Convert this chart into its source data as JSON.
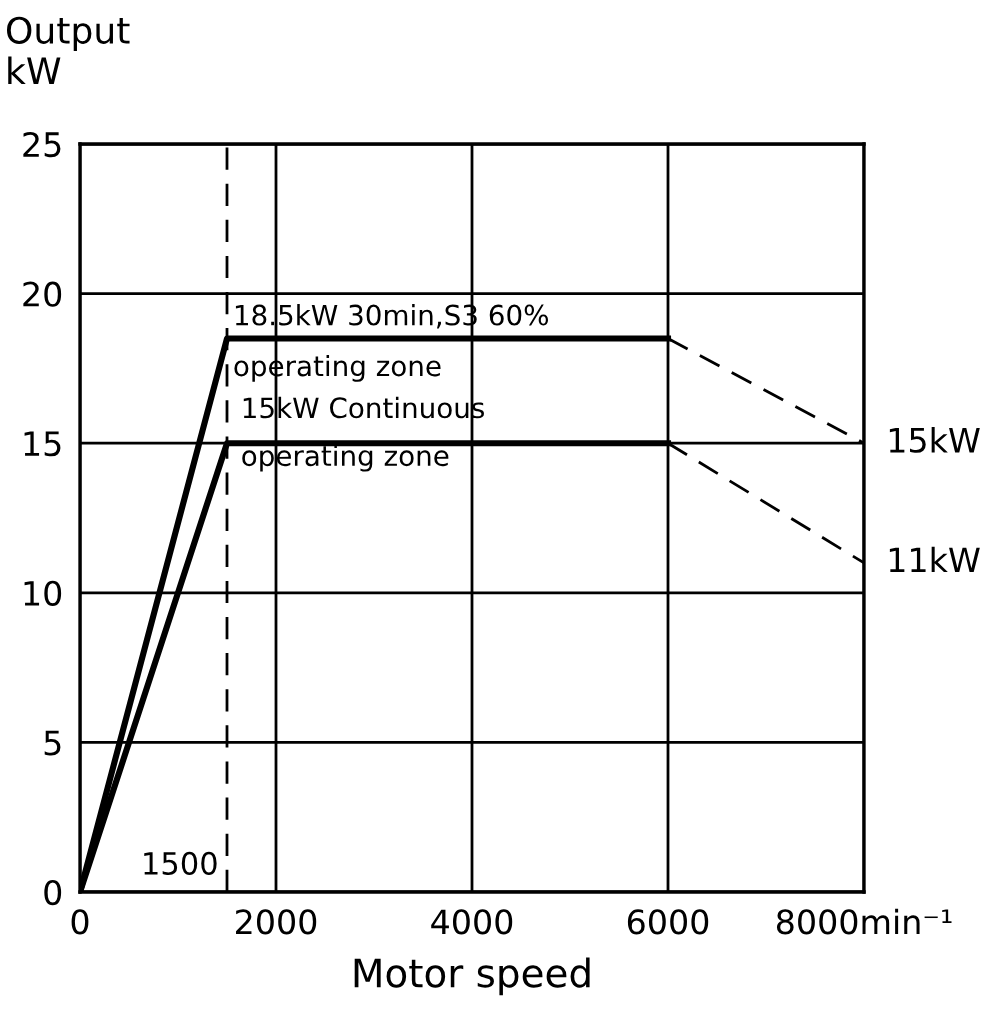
{
  "chart_data": {
    "type": "line",
    "xlabel": "Motor speed",
    "ylabel": "Output\nkW",
    "series": [
      {
        "color": "#000000",
        "x": [
          0,
          1500,
          6000
        ],
        "values": [
          0,
          18.5,
          18.5
        ],
        "line_style": "solid"
      },
      {
        "color": "#000000",
        "x": [
          0,
          1500,
          6000
        ],
        "values": [
          0,
          15,
          15
        ],
        "line_style": "solid"
      },
      {
        "color": "#000000",
        "x": [
          6000,
          8000
        ],
        "values": [
          18.5,
          15
        ],
        "line_style": "dashed"
      },
      {
        "color": "#000000",
        "x": [
          6000,
          8000
        ],
        "values": [
          15,
          11
        ],
        "line_style": "dashed"
      }
    ],
    "xlim": [
      0,
      8000
    ],
    "ylim": [
      0,
      25
    ],
    "xticks": [
      0,
      2000,
      4000,
      6000,
      {
        "value": 8000,
        "label": "8000min⁻¹"
      }
    ],
    "yticks": [
      0,
      5,
      10,
      15,
      20,
      25
    ],
    "grid": true,
    "ref_lines": [
      {
        "axis": "x",
        "value": 1500,
        "label": "1500",
        "line_style": "dashed",
        "color": "#000000"
      }
    ],
    "annotations": [
      "18.5kW 30min,S3 60%",
      "operating zone",
      "15kW Continuous",
      "operating zone",
      {
        "text": "15kW",
        "x": 8000,
        "y": 15
      },
      {
        "text": "11kW",
        "x": 8000,
        "y": 11
      }
    ]
  }
}
